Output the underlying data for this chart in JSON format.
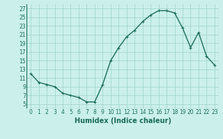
{
  "x": [
    0,
    1,
    2,
    3,
    4,
    5,
    6,
    7,
    8,
    9,
    10,
    11,
    12,
    13,
    14,
    15,
    16,
    17,
    18,
    19,
    20,
    21,
    22,
    23
  ],
  "y": [
    12,
    10,
    9.5,
    9,
    7.5,
    7,
    6.5,
    5.5,
    5.5,
    9.5,
    15,
    18,
    20.5,
    22,
    24,
    25.5,
    26.5,
    26.5,
    26,
    22.5,
    18,
    21.5,
    16,
    14
  ],
  "line_color": "#1a6b5a",
  "marker": "+",
  "background_color": "#cbf0eb",
  "grid_color": "#9ecfca",
  "xlabel": "Humidex (Indice chaleur)",
  "ylabel": "",
  "xlim": [
    -0.5,
    23.5
  ],
  "ylim": [
    4,
    28
  ],
  "yticks": [
    5,
    7,
    9,
    11,
    13,
    15,
    17,
    19,
    21,
    23,
    25,
    27
  ],
  "xticks": [
    0,
    1,
    2,
    3,
    4,
    5,
    6,
    7,
    8,
    9,
    10,
    11,
    12,
    13,
    14,
    15,
    16,
    17,
    18,
    19,
    20,
    21,
    22,
    23
  ],
  "tick_label_fontsize": 5.5,
  "xlabel_fontsize": 7.0,
  "line_width": 1.0,
  "marker_size": 3.5
}
